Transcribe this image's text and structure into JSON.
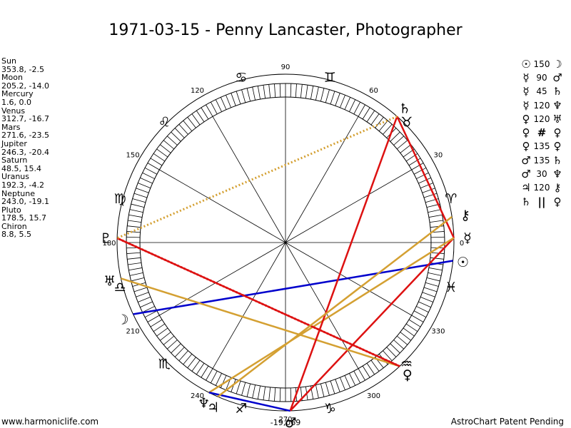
{
  "header": {
    "title": "1971-03-15 - Penny Lancaster, Photographer"
  },
  "footer": {
    "website": "www.harmoniclife.com",
    "credit": "AstroChart Patent Pending"
  },
  "planets": [
    {
      "name": "Sun",
      "glyph": "☉",
      "coords": "353.8, -2.5",
      "lon": 353.8
    },
    {
      "name": "Moon",
      "glyph": "☽",
      "coords": "205.2, -14.0",
      "lon": 205.2
    },
    {
      "name": "Mercury",
      "glyph": "☿",
      "coords": "1.6, 0.0",
      "lon": 1.6
    },
    {
      "name": "Venus",
      "glyph": "♀",
      "coords": "312.7, -16.7",
      "lon": 312.7
    },
    {
      "name": "Mars",
      "glyph": "♂",
      "coords": "271.6, -23.5",
      "lon": 271.6
    },
    {
      "name": "Jupiter",
      "glyph": "♃",
      "coords": "246.3, -20.4",
      "lon": 246.3
    },
    {
      "name": "Saturn",
      "glyph": "♄",
      "coords": "48.5, 15.4",
      "lon": 48.5
    },
    {
      "name": "Uranus",
      "glyph": "♅",
      "coords": "192.3, -4.2",
      "lon": 192.3
    },
    {
      "name": "Neptune",
      "glyph": "♆",
      "coords": "243.0, -19.1",
      "lon": 243.0
    },
    {
      "name": "Pluto",
      "glyph": "♇",
      "coords": "178.5, 15.7",
      "lon": 178.5
    },
    {
      "name": "Chiron",
      "glyph": "⚷",
      "coords": "8.8, 5.5",
      "lon": 8.8
    }
  ],
  "aspects": [
    {
      "p1": "☉",
      "value": "150",
      "p2": "☽",
      "a": 353.8,
      "b": 205.2,
      "color": "#0000cc",
      "dotted": false
    },
    {
      "p1": "☿",
      "value": "90",
      "p2": "♂",
      "a": 1.6,
      "b": 271.6,
      "color": "#dd1111",
      "dotted": false
    },
    {
      "p1": "☿",
      "value": "45",
      "p2": "♄",
      "a": 1.6,
      "b": 48.5,
      "color": "#dd1111",
      "dotted": false
    },
    {
      "p1": "☿",
      "value": "120",
      "p2": "♆",
      "a": 1.6,
      "b": 243.0,
      "color": "#d4a032",
      "dotted": false
    },
    {
      "p1": "♀",
      "value": "120",
      "p2": "♅",
      "a": 312.7,
      "b": 192.3,
      "color": "#d4a032",
      "dotted": false
    },
    {
      "p1": "♀",
      "value": "#",
      "p2": "♀",
      "a": 312.7,
      "b": 178.5,
      "color": "#dd1111",
      "dotted": true
    },
    {
      "p1": "♀",
      "value": "135",
      "p2": "♀",
      "a": 312.7,
      "b": 178.5,
      "color": "#dd1111",
      "dotted": false
    },
    {
      "p1": "♂",
      "value": "135",
      "p2": "♄",
      "a": 271.6,
      "b": 48.5,
      "color": "#dd1111",
      "dotted": false
    },
    {
      "p1": "♂",
      "value": "30",
      "p2": "♆",
      "a": 271.6,
      "b": 243.0,
      "color": "#0000cc",
      "dotted": false
    },
    {
      "p1": "♃",
      "value": "120",
      "p2": "⚷",
      "a": 246.3,
      "b": 8.8,
      "color": "#d4a032",
      "dotted": false
    },
    {
      "p1": "♄",
      "value": "||",
      "p2": "♀",
      "a": 48.5,
      "b": 178.5,
      "color": "#d4a032",
      "dotted": true
    }
  ],
  "wheel": {
    "degree_labels": [
      "0",
      "30",
      "60",
      "90",
      "120",
      "150",
      "180",
      "210",
      "240",
      "270",
      "300",
      "330"
    ],
    "signs": [
      "♈",
      "♉",
      "♊",
      "♋",
      "♌",
      "♍",
      "♎",
      "♏",
      "♐",
      "♑",
      "♒",
      "♓"
    ],
    "bottom_value": "-19,069"
  }
}
